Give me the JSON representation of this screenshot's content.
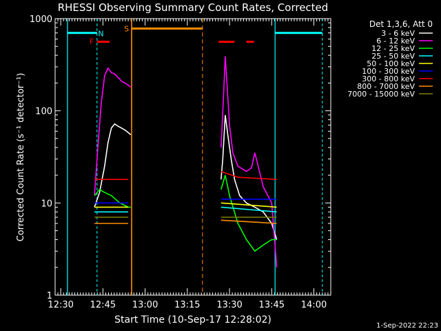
{
  "chart_data": {
    "type": "line",
    "title": "RHESSI Observing Summary Count Rates, Corrected",
    "xlabel": "Start Time (10-Sep-17 12:28:02)",
    "ylabel": "Corrected Count Rate (s⁻¹ detector⁻¹)",
    "yscale": "log",
    "ylim": [
      1,
      1000
    ],
    "xlim": [
      "12:28",
      "14:06"
    ],
    "x_ticks": [
      "12:30",
      "12:45",
      "13:00",
      "13:15",
      "13:30",
      "13:45",
      "14:00"
    ],
    "y_ticks": [
      "1",
      "10",
      "100",
      "1000"
    ],
    "legend_title": "Det 1,3,6, Att 0",
    "legend_position": "right",
    "footer": "1-Sep-2022 22:23",
    "flags": [
      {
        "label": "N",
        "color": "#00ffff"
      },
      {
        "label": "F",
        "color": "#ff0000"
      },
      {
        "label": "S",
        "color": "#ff8c00"
      }
    ],
    "series": [
      {
        "name": "3 - 6 keV",
        "color": "#ffffff",
        "seg1": [
          [
            12.7,
            9
          ],
          [
            12.73,
            13
          ],
          [
            12.76,
            25
          ],
          [
            12.78,
            45
          ],
          [
            12.8,
            65
          ],
          [
            12.82,
            72
          ],
          [
            12.84,
            68
          ],
          [
            12.86,
            65
          ],
          [
            12.88,
            62
          ],
          [
            12.9,
            58
          ],
          [
            12.915,
            55
          ]
        ],
        "seg2": [
          [
            13.45,
            18
          ],
          [
            13.46,
            30
          ],
          [
            13.475,
            90
          ],
          [
            13.49,
            55
          ],
          [
            13.51,
            30
          ],
          [
            13.53,
            18
          ],
          [
            13.56,
            12
          ],
          [
            13.6,
            10
          ],
          [
            13.65,
            9
          ],
          [
            13.7,
            8
          ],
          [
            13.75,
            6
          ],
          [
            13.78,
            4
          ]
        ]
      },
      {
        "name": "6 - 12 keV",
        "color": "#ff00ff",
        "seg1": [
          [
            12.7,
            12
          ],
          [
            12.72,
            40
          ],
          [
            12.74,
            120
          ],
          [
            12.76,
            240
          ],
          [
            12.78,
            290
          ],
          [
            12.8,
            260
          ],
          [
            12.82,
            250
          ],
          [
            12.84,
            230
          ],
          [
            12.86,
            210
          ],
          [
            12.88,
            200
          ],
          [
            12.9,
            190
          ],
          [
            12.915,
            180
          ]
        ],
        "seg2": [
          [
            13.45,
            40
          ],
          [
            13.465,
            150
          ],
          [
            13.475,
            390
          ],
          [
            13.485,
            200
          ],
          [
            13.5,
            70
          ],
          [
            13.52,
            35
          ],
          [
            13.55,
            25
          ],
          [
            13.6,
            22
          ],
          [
            13.63,
            24
          ],
          [
            13.65,
            35
          ],
          [
            13.67,
            25
          ],
          [
            13.7,
            15
          ],
          [
            13.75,
            10
          ],
          [
            13.78,
            2
          ]
        ]
      },
      {
        "name": "12 - 25 keV",
        "color": "#00ff00",
        "seg1": [
          [
            12.7,
            12
          ],
          [
            12.73,
            14
          ],
          [
            12.76,
            13
          ],
          [
            12.8,
            12
          ],
          [
            12.85,
            10
          ],
          [
            12.9,
            9
          ],
          [
            12.915,
            9
          ]
        ],
        "seg2": [
          [
            13.45,
            14
          ],
          [
            13.475,
            20
          ],
          [
            13.5,
            12
          ],
          [
            13.55,
            6
          ],
          [
            13.6,
            4
          ],
          [
            13.65,
            3
          ],
          [
            13.7,
            3.5
          ],
          [
            13.75,
            4
          ],
          [
            13.78,
            4
          ]
        ]
      },
      {
        "name": "25 - 50 keV",
        "color": "#00ffff",
        "seg1": [
          [
            12.7,
            8
          ],
          [
            12.9,
            8
          ]
        ],
        "seg2": [
          [
            13.45,
            9
          ],
          [
            13.78,
            8
          ]
        ]
      },
      {
        "name": "50 - 100 keV",
        "color": "#ffff00",
        "seg1": [
          [
            12.7,
            9
          ],
          [
            12.9,
            9
          ]
        ],
        "seg2": [
          [
            13.45,
            10
          ],
          [
            13.78,
            9
          ]
        ]
      },
      {
        "name": "100 - 300 keV",
        "color": "#0000ff",
        "seg1": [
          [
            12.7,
            10
          ],
          [
            12.9,
            10
          ]
        ],
        "seg2": [
          [
            13.45,
            11
          ],
          [
            13.78,
            11
          ]
        ]
      },
      {
        "name": "300 - 800 keV",
        "color": "#ff0000",
        "seg1": [
          [
            12.7,
            18
          ],
          [
            12.9,
            18
          ]
        ],
        "seg2": [
          [
            13.45,
            22
          ],
          [
            13.55,
            19
          ],
          [
            13.78,
            18
          ]
        ]
      },
      {
        "name": "800 - 7000 keV",
        "color": "#ff8c00",
        "seg1": [
          [
            12.7,
            6
          ],
          [
            12.9,
            6
          ]
        ],
        "seg2": [
          [
            13.45,
            6.5
          ],
          [
            13.78,
            6
          ]
        ]
      },
      {
        "name": "7000 - 15000 keV",
        "color": "#808000",
        "seg1": [
          [
            12.7,
            7
          ],
          [
            12.9,
            7
          ]
        ],
        "seg2": [
          [
            13.45,
            7
          ],
          [
            13.78,
            7
          ]
        ]
      }
    ],
    "x_values_note": "x values are decimal hours of UT"
  }
}
